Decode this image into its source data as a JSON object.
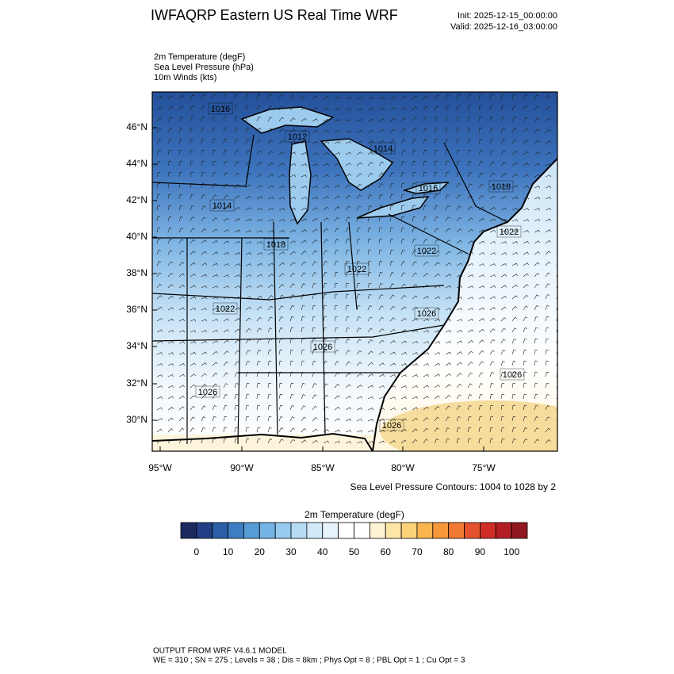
{
  "header": {
    "title": "IWFAQRP Eastern US Real Time WRF",
    "init": "Init: 2025-12-15_00:00:00",
    "valid": "Valid: 2025-12-16_03:00:00"
  },
  "fields": [
    "2m Temperature   (degF)",
    "Sea Level Pressure   (hPa)",
    "10m Winds   (kts)"
  ],
  "map": {
    "lat_labels": [
      "46°N",
      "44°N",
      "42°N",
      "40°N",
      "38°N",
      "36°N",
      "34°N",
      "32°N",
      "30°N"
    ],
    "lon_labels": [
      "95°W",
      "90°W",
      "85°W",
      "80°W",
      "75°W"
    ],
    "contour_labels": [
      "1016",
      "1012",
      "1014",
      "1016",
      "1018",
      "1014",
      "1018",
      "1022",
      "1022",
      "1022",
      "1022",
      "1026",
      "1026",
      "1026",
      "1026",
      "1026"
    ],
    "contour_note": "Sea Level Pressure Contours: 1004 to 1028 by 2"
  },
  "colorbar": {
    "title": "2m Temperature  (degF)",
    "colors": [
      "#1b2a5e",
      "#223f86",
      "#2c5ea6",
      "#3e7ec2",
      "#569dd6",
      "#74b4e4",
      "#96caef",
      "#b6dcf5",
      "#d2eaf8",
      "#e8f4fb",
      "#ffffff",
      "#ffffff",
      "#fff3d6",
      "#fde5a6",
      "#fbd27a",
      "#f9b64f",
      "#f7983b",
      "#f17a33",
      "#e4532d",
      "#cf2e26",
      "#b31f24",
      "#8f1820"
    ],
    "ticks": [
      0,
      10,
      20,
      30,
      40,
      50,
      60,
      70,
      80,
      90,
      100
    ]
  },
  "footer": [
    "OUTPUT FROM WRF V4.6.1 MODEL",
    "WE = 310 ; SN = 275 ; Levels = 38 ; Dis = 8km ; Phys Opt = 8 ; PBL Opt = 1 ; Cu Opt = 3"
  ]
}
